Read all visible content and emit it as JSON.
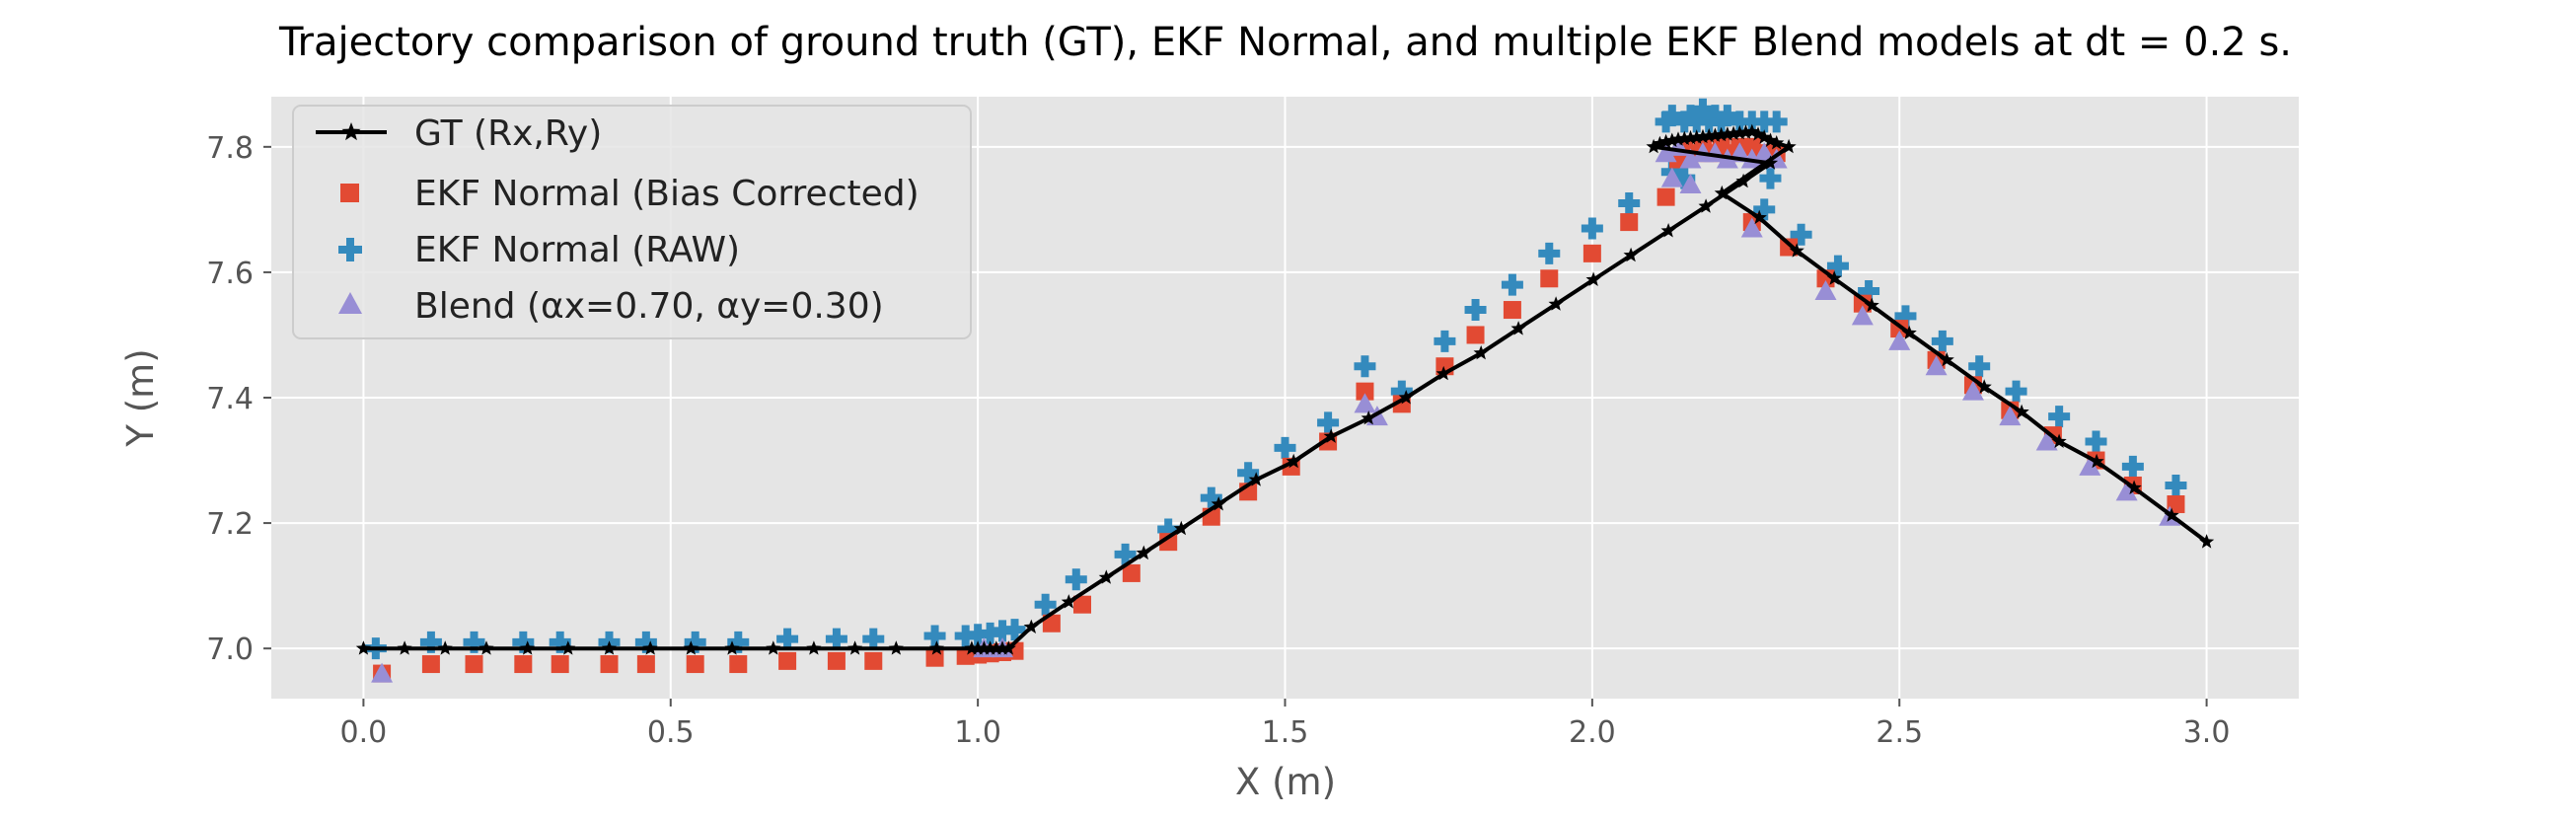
{
  "chart_data": {
    "type": "scatter",
    "title": "Trajectory comparison of ground truth (GT), EKF Normal, and multiple EKF Blend models at dt = 0.2 s.",
    "xlabel": "X (m)",
    "ylabel": "Y (m)",
    "xlim": [
      -0.15,
      3.15
    ],
    "ylim": [
      6.92,
      7.88
    ],
    "xticks": [
      0.0,
      0.5,
      1.0,
      1.5,
      2.0,
      2.5,
      3.0
    ],
    "xtick_labels": [
      "0.0",
      "0.5",
      "1.0",
      "1.5",
      "2.0",
      "2.5",
      "3.0"
    ],
    "yticks": [
      7.0,
      7.2,
      7.4,
      7.6,
      7.8
    ],
    "ytick_labels": [
      "7.0",
      "7.2",
      "7.4",
      "7.6",
      "7.8"
    ],
    "grid": true,
    "legend_position": "top-left",
    "background": "#e5e5e5",
    "series": [
      {
        "name": "GT (Rx,Ry)",
        "kind": "line-star",
        "color": "#000000",
        "points": [
          [
            0.0,
            7.0
          ],
          [
            0.067,
            7.0
          ],
          [
            0.133,
            7.0
          ],
          [
            0.2,
            7.0
          ],
          [
            0.267,
            7.0
          ],
          [
            0.333,
            7.0
          ],
          [
            0.4,
            7.0
          ],
          [
            0.467,
            7.0
          ],
          [
            0.533,
            7.0
          ],
          [
            0.6,
            7.0
          ],
          [
            0.667,
            7.0
          ],
          [
            0.733,
            7.0
          ],
          [
            0.8,
            7.0
          ],
          [
            0.867,
            7.0
          ],
          [
            0.933,
            7.0
          ],
          [
            0.99,
            7.0
          ],
          [
            1.0,
            7.0
          ],
          [
            1.01,
            7.0
          ],
          [
            1.02,
            7.0
          ],
          [
            1.03,
            7.0
          ],
          [
            1.04,
            7.0
          ],
          [
            1.05,
            7.0
          ],
          [
            1.087,
            7.034
          ],
          [
            1.148,
            7.074
          ],
          [
            1.209,
            7.113
          ],
          [
            1.27,
            7.152
          ],
          [
            1.331,
            7.191
          ],
          [
            1.392,
            7.23
          ],
          [
            1.453,
            7.269
          ],
          [
            1.514,
            7.298
          ],
          [
            1.575,
            7.338
          ],
          [
            1.636,
            7.367
          ],
          [
            1.697,
            7.4
          ],
          [
            1.758,
            7.438
          ],
          [
            1.819,
            7.471
          ],
          [
            1.88,
            7.51
          ],
          [
            1.941,
            7.549
          ],
          [
            2.002,
            7.588
          ],
          [
            2.063,
            7.627
          ],
          [
            2.124,
            7.666
          ],
          [
            2.185,
            7.705
          ],
          [
            2.246,
            7.745
          ],
          [
            2.29,
            7.774
          ],
          [
            2.1,
            7.8
          ],
          [
            2.11,
            7.805
          ],
          [
            2.12,
            7.808
          ],
          [
            2.13,
            7.81
          ],
          [
            2.14,
            7.812
          ],
          [
            2.15,
            7.813
          ],
          [
            2.16,
            7.814
          ],
          [
            2.17,
            7.815
          ],
          [
            2.18,
            7.816
          ],
          [
            2.19,
            7.817
          ],
          [
            2.2,
            7.818
          ],
          [
            2.21,
            7.819
          ],
          [
            2.22,
            7.82
          ],
          [
            2.23,
            7.821
          ],
          [
            2.24,
            7.822
          ],
          [
            2.25,
            7.823
          ],
          [
            2.26,
            7.824
          ],
          [
            2.27,
            7.82
          ],
          [
            2.28,
            7.815
          ],
          [
            2.29,
            7.81
          ],
          [
            2.3,
            7.806
          ],
          [
            2.32,
            7.8
          ],
          [
            2.211,
            7.726
          ],
          [
            2.272,
            7.687
          ],
          [
            2.333,
            7.634
          ],
          [
            2.394,
            7.59
          ],
          [
            2.455,
            7.547
          ],
          [
            2.516,
            7.503
          ],
          [
            2.577,
            7.46
          ],
          [
            2.638,
            7.417
          ],
          [
            2.699,
            7.377
          ],
          [
            2.76,
            7.33
          ],
          [
            2.821,
            7.298
          ],
          [
            2.882,
            7.256
          ],
          [
            2.943,
            7.212
          ],
          [
            3.0,
            7.17
          ]
        ]
      },
      {
        "name": "EKF Normal (Bias Corrected)",
        "kind": "square",
        "color": "#e24a33",
        "points": [
          [
            0.03,
            6.96
          ],
          [
            0.11,
            6.975
          ],
          [
            0.18,
            6.975
          ],
          [
            0.26,
            6.975
          ],
          [
            0.32,
            6.975
          ],
          [
            0.4,
            6.975
          ],
          [
            0.46,
            6.975
          ],
          [
            0.54,
            6.975
          ],
          [
            0.61,
            6.975
          ],
          [
            0.69,
            6.98
          ],
          [
            0.77,
            6.98
          ],
          [
            0.83,
            6.98
          ],
          [
            0.93,
            6.985
          ],
          [
            0.98,
            6.988
          ],
          [
            1.0,
            6.99
          ],
          [
            1.02,
            6.992
          ],
          [
            1.04,
            6.994
          ],
          [
            1.06,
            6.996
          ],
          [
            1.12,
            7.04
          ],
          [
            1.17,
            7.07
          ],
          [
            1.25,
            7.12
          ],
          [
            1.31,
            7.17
          ],
          [
            1.38,
            7.21
          ],
          [
            1.44,
            7.25
          ],
          [
            1.51,
            7.29
          ],
          [
            1.57,
            7.33
          ],
          [
            1.63,
            7.41
          ],
          [
            1.69,
            7.39
          ],
          [
            1.76,
            7.45
          ],
          [
            1.81,
            7.5
          ],
          [
            1.87,
            7.54
          ],
          [
            1.93,
            7.59
          ],
          [
            2.0,
            7.63
          ],
          [
            2.06,
            7.68
          ],
          [
            2.12,
            7.72
          ],
          [
            2.14,
            7.78
          ],
          [
            2.15,
            7.8
          ],
          [
            2.16,
            7.79
          ],
          [
            2.18,
            7.8
          ],
          [
            2.19,
            7.79
          ],
          [
            2.21,
            7.8
          ],
          [
            2.22,
            7.79
          ],
          [
            2.24,
            7.8
          ],
          [
            2.26,
            7.8
          ],
          [
            2.28,
            7.79
          ],
          [
            2.3,
            7.79
          ],
          [
            2.26,
            7.68
          ],
          [
            2.32,
            7.64
          ],
          [
            2.38,
            7.59
          ],
          [
            2.44,
            7.55
          ],
          [
            2.5,
            7.51
          ],
          [
            2.56,
            7.46
          ],
          [
            2.62,
            7.42
          ],
          [
            2.68,
            7.38
          ],
          [
            2.75,
            7.34
          ],
          [
            2.82,
            7.3
          ],
          [
            2.88,
            7.26
          ],
          [
            2.95,
            7.23
          ]
        ]
      },
      {
        "name": "EKF Normal (RAW)",
        "kind": "plus",
        "color": "#348abd",
        "points": [
          [
            0.02,
            7.0
          ],
          [
            0.11,
            7.01
          ],
          [
            0.18,
            7.01
          ],
          [
            0.26,
            7.01
          ],
          [
            0.32,
            7.01
          ],
          [
            0.4,
            7.01
          ],
          [
            0.46,
            7.01
          ],
          [
            0.54,
            7.01
          ],
          [
            0.61,
            7.01
          ],
          [
            0.69,
            7.015
          ],
          [
            0.77,
            7.015
          ],
          [
            0.83,
            7.015
          ],
          [
            0.93,
            7.02
          ],
          [
            0.98,
            7.02
          ],
          [
            1.0,
            7.022
          ],
          [
            1.02,
            7.024
          ],
          [
            1.04,
            7.028
          ],
          [
            1.06,
            7.03
          ],
          [
            1.11,
            7.07
          ],
          [
            1.16,
            7.11
          ],
          [
            1.24,
            7.15
          ],
          [
            1.31,
            7.19
          ],
          [
            1.38,
            7.24
          ],
          [
            1.44,
            7.28
          ],
          [
            1.5,
            7.32
          ],
          [
            1.57,
            7.36
          ],
          [
            1.63,
            7.45
          ],
          [
            1.69,
            7.41
          ],
          [
            1.76,
            7.49
          ],
          [
            1.81,
            7.54
          ],
          [
            1.87,
            7.58
          ],
          [
            1.93,
            7.63
          ],
          [
            2.0,
            7.67
          ],
          [
            2.06,
            7.71
          ],
          [
            2.12,
            7.84
          ],
          [
            2.13,
            7.85
          ],
          [
            2.15,
            7.84
          ],
          [
            2.16,
            7.85
          ],
          [
            2.17,
            7.84
          ],
          [
            2.18,
            7.86
          ],
          [
            2.19,
            7.84
          ],
          [
            2.2,
            7.85
          ],
          [
            2.21,
            7.84
          ],
          [
            2.22,
            7.85
          ],
          [
            2.24,
            7.84
          ],
          [
            2.26,
            7.84
          ],
          [
            2.28,
            7.84
          ],
          [
            2.3,
            7.84
          ],
          [
            2.13,
            7.76
          ],
          [
            2.15,
            7.75
          ],
          [
            2.29,
            7.75
          ],
          [
            2.28,
            7.7
          ],
          [
            2.34,
            7.66
          ],
          [
            2.4,
            7.61
          ],
          [
            2.45,
            7.57
          ],
          [
            2.51,
            7.53
          ],
          [
            2.57,
            7.49
          ],
          [
            2.63,
            7.45
          ],
          [
            2.69,
            7.41
          ],
          [
            2.76,
            7.37
          ],
          [
            2.82,
            7.33
          ],
          [
            2.88,
            7.29
          ],
          [
            2.95,
            7.26
          ]
        ]
      },
      {
        "name": "Blend (αx=0.70, αy=0.30)",
        "kind": "triangle",
        "color": "#988ed5",
        "points": [
          [
            0.03,
            6.96
          ],
          [
            1.01,
            7.0
          ],
          [
            1.04,
            7.0
          ],
          [
            1.63,
            7.39
          ],
          [
            1.65,
            7.37
          ],
          [
            2.12,
            7.79
          ],
          [
            2.14,
            7.8
          ],
          [
            2.16,
            7.78
          ],
          [
            2.18,
            7.79
          ],
          [
            2.2,
            7.79
          ],
          [
            2.22,
            7.78
          ],
          [
            2.24,
            7.79
          ],
          [
            2.26,
            7.78
          ],
          [
            2.28,
            7.79
          ],
          [
            2.3,
            7.78
          ],
          [
            2.13,
            7.75
          ],
          [
            2.16,
            7.74
          ],
          [
            2.28,
            7.78
          ],
          [
            2.26,
            7.67
          ],
          [
            2.38,
            7.57
          ],
          [
            2.44,
            7.53
          ],
          [
            2.5,
            7.49
          ],
          [
            2.56,
            7.45
          ],
          [
            2.62,
            7.41
          ],
          [
            2.68,
            7.37
          ],
          [
            2.74,
            7.33
          ],
          [
            2.81,
            7.29
          ],
          [
            2.87,
            7.25
          ],
          [
            2.94,
            7.21
          ]
        ]
      }
    ]
  }
}
